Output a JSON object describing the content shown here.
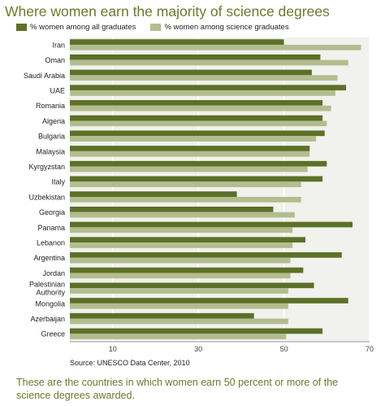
{
  "title": "Where women earn the majority of science degrees",
  "colors": {
    "all_graduates": "#5d7028",
    "science_graduates": "#b3bc8f",
    "plot_bg": "#f1f1ed",
    "grid": "#ffffff",
    "title": "#6a7a2e"
  },
  "legend": [
    {
      "label": "% women among all graduates",
      "color": "#5d7028"
    },
    {
      "label": "% women among science graduates",
      "color": "#b3bc8f"
    }
  ],
  "source": "Source: UNESCO Data Center, 2010",
  "caption": "These are the countries in which women earn 50 percent or more of the science degrees awarded.",
  "chart_data": {
    "type": "bar",
    "orientation": "horizontal",
    "categories": [
      "Iran",
      "Oman",
      "Saudi Arabia",
      "UAE",
      "Romania",
      "Algeria",
      "Bulgaria",
      "Malaysia",
      "Kyrgyzstan",
      "Italy",
      "Uzbekistan",
      "Georgia",
      "Panama",
      "Lebanon",
      "Argentina",
      "Jordan",
      "Palestinian Authority",
      "Mongolia",
      "Azerbaijan",
      "Greece"
    ],
    "category_lines": [
      [
        "Iran"
      ],
      [
        "Oman"
      ],
      [
        "Saudi Arabia"
      ],
      [
        "UAE"
      ],
      [
        "Romania"
      ],
      [
        "Algeria"
      ],
      [
        "Bulgaria"
      ],
      [
        "Malaysia"
      ],
      [
        "Kyrgyzstan"
      ],
      [
        "Italy"
      ],
      [
        "Uzbekistan"
      ],
      [
        "Georgia"
      ],
      [
        "Panama"
      ],
      [
        "Lebanon"
      ],
      [
        "Argentina"
      ],
      [
        "Jordan"
      ],
      [
        "Palestinian",
        "Authority"
      ],
      [
        "Mongolia"
      ],
      [
        "Azerbaijan"
      ],
      [
        "Greece"
      ]
    ],
    "series": [
      {
        "name": "% women among all graduates",
        "values": [
          50,
          58.5,
          56.5,
          64.5,
          59,
          59,
          59.5,
          56,
          60,
          59,
          39,
          47.5,
          66,
          55,
          63.5,
          54.5,
          57,
          65,
          43,
          59
        ]
      },
      {
        "name": "% women among science graduates",
        "values": [
          68,
          65,
          62.5,
          62,
          61,
          60,
          57.5,
          56,
          55.5,
          54,
          54,
          52.5,
          52,
          52,
          51.5,
          51.5,
          51,
          51,
          51,
          50.5
        ]
      }
    ],
    "xticks": [
      10,
      30,
      50,
      70
    ],
    "xlim": [
      0,
      70
    ],
    "grid": true
  }
}
